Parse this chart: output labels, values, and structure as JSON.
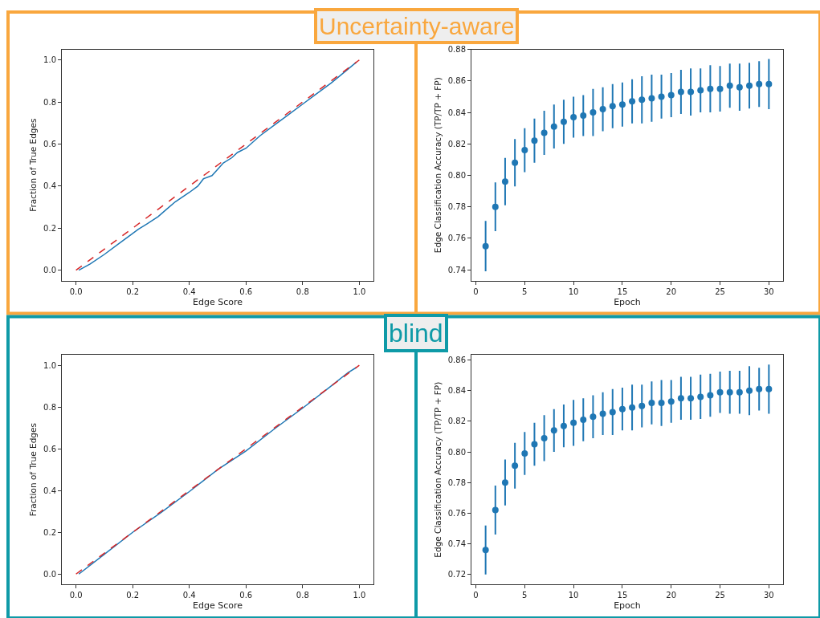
{
  "chart_data": [
    {
      "type": "line",
      "title": "Uncertainty-aware",
      "xlabel": "Edge Score",
      "ylabel": "Fraction of True Edges",
      "xlim": [
        -0.05,
        1.05
      ],
      "ylim": [
        -0.05,
        1.05
      ],
      "xticks": [
        {
          "value": 0,
          "label": "0.0"
        },
        {
          "value": 0.2,
          "label": "0.2"
        },
        {
          "value": 0.4,
          "label": "0.4"
        },
        {
          "value": 0.6,
          "label": "0.6"
        },
        {
          "value": 0.8,
          "label": "0.8"
        },
        {
          "value": 1,
          "label": "1.0"
        }
      ],
      "yticks": [
        {
          "value": 0,
          "label": "0.0"
        },
        {
          "value": 0.2,
          "label": "0.2"
        },
        {
          "value": 0.4,
          "label": "0.4"
        },
        {
          "value": 0.6,
          "label": "0.6"
        },
        {
          "value": 0.8,
          "label": "0.8"
        },
        {
          "value": 1,
          "label": "1.0"
        }
      ],
      "series": [
        {
          "color": "#1f77b4",
          "line_style": "solid",
          "x": [
            0.01,
            0.05,
            0.1,
            0.15,
            0.2,
            0.22,
            0.25,
            0.29,
            0.32,
            0.35,
            0.4,
            0.43,
            0.45,
            0.48,
            0.5,
            0.52,
            0.55,
            0.57,
            0.6,
            0.65,
            0.7,
            0.75,
            0.8,
            0.85,
            0.9,
            0.95,
            0.99
          ],
          "values": [
            0.0,
            0.03,
            0.075,
            0.125,
            0.175,
            0.195,
            0.22,
            0.255,
            0.29,
            0.325,
            0.37,
            0.4,
            0.435,
            0.45,
            0.48,
            0.51,
            0.535,
            0.56,
            0.58,
            0.64,
            0.69,
            0.74,
            0.79,
            0.84,
            0.89,
            0.945,
            0.99
          ]
        },
        {
          "color": "#d62728",
          "line_style": "dashed",
          "x": [
            0,
            1
          ],
          "values": [
            0,
            1
          ]
        }
      ]
    },
    {
      "type": "scatter",
      "xlabel": "Epoch",
      "ylabel": "Edge Classification Accuracy (TP/TP + FP)",
      "xlim": [
        -0.45,
        31.45
      ],
      "ylim": [
        0.733,
        0.88
      ],
      "marker": "circle",
      "xticks": [
        0,
        5,
        10,
        15,
        20,
        25,
        30
      ],
      "yticks": [
        {
          "value": 0.74,
          "label": "0.74"
        },
        {
          "value": 0.76,
          "label": "0.76"
        },
        {
          "value": 0.78,
          "label": "0.78"
        },
        {
          "value": 0.8,
          "label": "0.80"
        },
        {
          "value": 0.82,
          "label": "0.82"
        },
        {
          "value": 0.84,
          "label": "0.84"
        },
        {
          "value": 0.86,
          "label": "0.86"
        },
        {
          "value": 0.88,
          "label": "0.88"
        }
      ],
      "series": [
        {
          "color": "#1f77b4",
          "x": [
            1,
            2,
            3,
            4,
            5,
            6,
            7,
            8,
            9,
            10,
            11,
            12,
            13,
            14,
            15,
            16,
            17,
            18,
            19,
            20,
            21,
            22,
            23,
            24,
            25,
            26,
            27,
            28,
            29,
            30
          ],
          "values": [
            0.755,
            0.78,
            0.796,
            0.808,
            0.816,
            0.822,
            0.827,
            0.831,
            0.834,
            0.837,
            0.838,
            0.84,
            0.842,
            0.844,
            0.845,
            0.847,
            0.848,
            0.849,
            0.85,
            0.851,
            0.853,
            0.853,
            0.854,
            0.855,
            0.855,
            0.857,
            0.856,
            0.857,
            0.858,
            0.858
          ],
          "errors": [
            0.016,
            0.0155,
            0.015,
            0.015,
            0.014,
            0.014,
            0.014,
            0.014,
            0.014,
            0.013,
            0.013,
            0.015,
            0.014,
            0.014,
            0.014,
            0.014,
            0.015,
            0.015,
            0.014,
            0.014,
            0.014,
            0.015,
            0.014,
            0.015,
            0.0145,
            0.014,
            0.015,
            0.0145,
            0.0145,
            0.016
          ]
        }
      ]
    },
    {
      "type": "line",
      "xlabel": "Edge Score",
      "ylabel": "Fraction of True Edges",
      "xlim": [
        -0.05,
        1.05
      ],
      "ylim": [
        -0.05,
        1.05
      ],
      "xticks": [
        {
          "value": 0,
          "label": "0.0"
        },
        {
          "value": 0.2,
          "label": "0.2"
        },
        {
          "value": 0.4,
          "label": "0.4"
        },
        {
          "value": 0.6,
          "label": "0.6"
        },
        {
          "value": 0.8,
          "label": "0.8"
        },
        {
          "value": 1,
          "label": "1.0"
        }
      ],
      "yticks": [
        {
          "value": 0,
          "label": "0.0"
        },
        {
          "value": 0.2,
          "label": "0.2"
        },
        {
          "value": 0.4,
          "label": "0.4"
        },
        {
          "value": 0.6,
          "label": "0.6"
        },
        {
          "value": 0.8,
          "label": "0.8"
        },
        {
          "value": 1,
          "label": "1.0"
        }
      ],
      "series": [
        {
          "color": "#1f77b4",
          "line_style": "solid",
          "x": [
            0.01,
            0.1,
            0.2,
            0.3,
            0.4,
            0.5,
            0.6,
            0.7,
            0.8,
            0.9,
            0.96,
            0.99
          ],
          "values": [
            0.0,
            0.095,
            0.2,
            0.295,
            0.395,
            0.5,
            0.59,
            0.695,
            0.795,
            0.9,
            0.965,
            0.99
          ]
        },
        {
          "color": "#d62728",
          "line_style": "dashed",
          "x": [
            0,
            1
          ],
          "values": [
            0,
            1
          ]
        }
      ]
    },
    {
      "type": "scatter",
      "title": "blind",
      "xlabel": "Epoch",
      "ylabel": "Edge Classification Accuracy (TP/TP + FP)",
      "xlim": [
        -0.45,
        31.45
      ],
      "ylim": [
        0.7134,
        0.8634
      ],
      "marker": "circle",
      "xticks": [
        0,
        5,
        10,
        15,
        20,
        25,
        30
      ],
      "yticks": [
        {
          "value": 0.72,
          "label": "0.72"
        },
        {
          "value": 0.74,
          "label": "0.74"
        },
        {
          "value": 0.76,
          "label": "0.76"
        },
        {
          "value": 0.78,
          "label": "0.78"
        },
        {
          "value": 0.8,
          "label": "0.80"
        },
        {
          "value": 0.82,
          "label": "0.82"
        },
        {
          "value": 0.84,
          "label": "0.84"
        },
        {
          "value": 0.86,
          "label": "0.86"
        }
      ],
      "series": [
        {
          "color": "#1f77b4",
          "x": [
            1,
            2,
            3,
            4,
            5,
            6,
            7,
            8,
            9,
            10,
            11,
            12,
            13,
            14,
            15,
            16,
            17,
            18,
            19,
            20,
            21,
            22,
            23,
            24,
            25,
            26,
            27,
            28,
            29,
            30
          ],
          "values": [
            0.736,
            0.762,
            0.78,
            0.791,
            0.799,
            0.805,
            0.809,
            0.814,
            0.817,
            0.819,
            0.821,
            0.823,
            0.825,
            0.826,
            0.828,
            0.829,
            0.83,
            0.832,
            0.832,
            0.833,
            0.835,
            0.835,
            0.836,
            0.837,
            0.839,
            0.839,
            0.839,
            0.84,
            0.841,
            0.841
          ],
          "errors": [
            0.016,
            0.016,
            0.015,
            0.015,
            0.014,
            0.014,
            0.015,
            0.014,
            0.014,
            0.015,
            0.014,
            0.014,
            0.014,
            0.015,
            0.014,
            0.015,
            0.014,
            0.014,
            0.015,
            0.014,
            0.014,
            0.014,
            0.0145,
            0.014,
            0.0135,
            0.014,
            0.014,
            0.016,
            0.014,
            0.016
          ]
        }
      ]
    }
  ]
}
